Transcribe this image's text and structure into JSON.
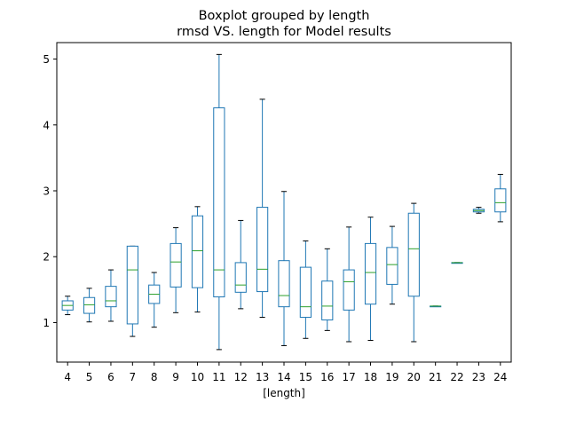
{
  "chart_data": {
    "type": "boxplot",
    "title": "Boxplot grouped by length",
    "subtitle": "rmsd VS. length for Model results",
    "xlabel": "[length]",
    "ylabel": "",
    "ylim": [
      0.4,
      5.25
    ],
    "yticks": [
      1,
      2,
      3,
      4,
      5
    ],
    "grid": false,
    "colors": {
      "box": "#1f77b4",
      "median": "#2ca02c",
      "whisker": "#1f77b4",
      "cap": "#000000"
    },
    "categories": [
      "4",
      "5",
      "6",
      "7",
      "8",
      "9",
      "10",
      "11",
      "12",
      "13",
      "14",
      "15",
      "16",
      "17",
      "18",
      "19",
      "20",
      "21",
      "22",
      "23",
      "24"
    ],
    "boxes": [
      {
        "min": 1.12,
        "q1": 1.19,
        "median": 1.26,
        "q3": 1.33,
        "max": 1.4
      },
      {
        "min": 1.01,
        "q1": 1.14,
        "median": 1.27,
        "q3": 1.38,
        "max": 1.52
      },
      {
        "min": 1.02,
        "q1": 1.24,
        "median": 1.33,
        "q3": 1.55,
        "max": 1.8
      },
      {
        "min": 0.79,
        "q1": 0.98,
        "median": 1.8,
        "q3": 2.16,
        "max": 2.16
      },
      {
        "min": 0.93,
        "q1": 1.29,
        "median": 1.43,
        "q3": 1.57,
        "max": 1.76
      },
      {
        "min": 1.15,
        "q1": 1.54,
        "median": 1.92,
        "q3": 2.2,
        "max": 2.44
      },
      {
        "min": 1.16,
        "q1": 1.53,
        "median": 2.09,
        "q3": 2.62,
        "max": 2.76
      },
      {
        "min": 0.59,
        "q1": 1.39,
        "median": 1.8,
        "q3": 4.26,
        "max": 5.07
      },
      {
        "min": 1.21,
        "q1": 1.46,
        "median": 1.57,
        "q3": 1.91,
        "max": 2.55
      },
      {
        "min": 1.08,
        "q1": 1.47,
        "median": 1.81,
        "q3": 2.75,
        "max": 4.39
      },
      {
        "min": 0.65,
        "q1": 1.24,
        "median": 1.41,
        "q3": 1.94,
        "max": 2.99
      },
      {
        "min": 0.76,
        "q1": 1.08,
        "median": 1.24,
        "q3": 1.84,
        "max": 2.24
      },
      {
        "min": 0.88,
        "q1": 1.04,
        "median": 1.25,
        "q3": 1.63,
        "max": 2.12
      },
      {
        "min": 0.71,
        "q1": 1.19,
        "median": 1.62,
        "q3": 1.8,
        "max": 2.45
      },
      {
        "min": 0.73,
        "q1": 1.28,
        "median": 1.76,
        "q3": 2.2,
        "max": 2.6
      },
      {
        "min": 1.28,
        "q1": 1.58,
        "median": 1.88,
        "q3": 2.14,
        "max": 2.46
      },
      {
        "min": 0.71,
        "q1": 1.4,
        "median": 2.12,
        "q3": 2.66,
        "max": 2.81
      },
      {
        "min": 1.25,
        "q1": 1.25,
        "median": 1.25,
        "q3": 1.25,
        "max": 1.25
      },
      {
        "min": 1.91,
        "q1": 1.91,
        "median": 1.91,
        "q3": 1.91,
        "max": 1.91
      },
      {
        "min": 2.66,
        "q1": 2.68,
        "median": 2.7,
        "q3": 2.72,
        "max": 2.75
      },
      {
        "min": 2.53,
        "q1": 2.68,
        "median": 2.82,
        "q3": 3.03,
        "max": 3.25
      }
    ]
  }
}
